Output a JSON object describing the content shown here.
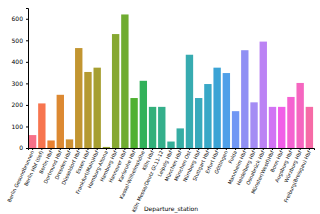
{
  "chart_data": {
    "type": "bar",
    "x_label": "Departure_station",
    "categories": [
      "Berlin Gesundbrunnen",
      "Berlin Hbf (tief)",
      "Berlin Hbf",
      "Dortmund Hbf",
      "Dresden Hbf",
      "Düsseldorf Hbf",
      "Essen Hbf",
      "Frankfurt(Main)Hbf",
      "Hamburg-Altona",
      "Hamburg Hbf",
      "Hannover Hbf",
      "Karlsruhe Hbf",
      "Kassel-Wilhelmshöhe",
      "Köln Hbf",
      "Köln Messe/Deutz Gl.11-12",
      "Leipzig Hbf",
      "München Hbf",
      "München Ost",
      "Nürnberg Hbf",
      "Stuttgart Hbf",
      "Erfurt Hbf",
      "Göttingen",
      "Fulda",
      "Mannheim Hbf",
      "Heidelberg Hbf",
      "Osnabrück Hbf",
      "Münster(Westf)Hbf",
      "Bonn Hbf",
      "Augsburg Hbf",
      "Würzburg Hbf",
      "Freiburg(Breisgau) Hbf"
    ],
    "values": [
      60,
      207,
      35,
      247,
      40,
      464,
      353,
      373,
      5,
      529,
      620,
      232,
      312,
      191,
      191,
      30,
      91,
      433,
      232,
      297,
      373,
      348,
      171,
      454,
      212,
      494,
      191,
      191,
      237,
      302,
      191
    ],
    "colors": [
      "#f77189",
      "#f7754f",
      "#e98132",
      "#dc8932",
      "#ce9032",
      "#c29531",
      "#b59a31",
      "#a69f31",
      "#97a431",
      "#86a831",
      "#70ac31",
      "#50b131",
      "#32b15a",
      "#33b07a",
      "#34af8b",
      "#35ae98",
      "#36ada4",
      "#37abb0",
      "#38aabc",
      "#39a8c7",
      "#3ba3d5",
      "#4fa0e9",
      "#7097f4",
      "#9090f4",
      "#a48cf4",
      "#bb83f4",
      "#d174f4",
      "#f15ee8",
      "#f562d1",
      "#f566c0",
      "#f66ba6"
    ],
    "ylim": [
      0,
      650
    ],
    "yticks": [
      0,
      100,
      200,
      300,
      400,
      500,
      600
    ],
    "grid": false
  }
}
